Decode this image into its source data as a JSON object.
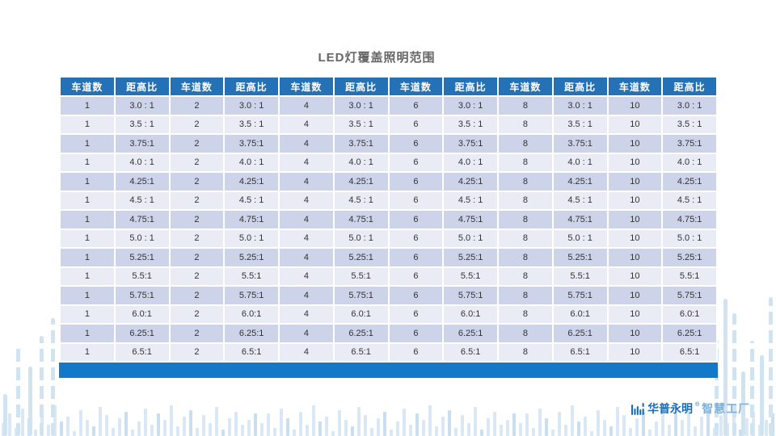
{
  "title": "LED灯覆盖照明范围",
  "table": {
    "columns": [
      "车道数",
      "距高比",
      "车道数",
      "距高比",
      "车道数",
      "距高比",
      "车道数",
      "距高比",
      "车道数",
      "距高比",
      "车道数",
      "距高比"
    ],
    "lanes": [
      "1",
      "2",
      "4",
      "6",
      "8",
      "10"
    ],
    "ratios": [
      "3.0 : 1",
      "3.5 : 1",
      "3.75:1",
      "4.0 : 1",
      "4.25:1",
      "4.5 : 1",
      "4.75:1",
      "5.0 : 1",
      "5.25:1",
      "5.5:1",
      "5.75:1",
      "6.0:1",
      "6.25:1",
      "6.5:1"
    ],
    "rows": [
      [
        "1",
        "3.0 : 1",
        "2",
        "3.0 : 1",
        "4",
        "3.0 : 1",
        "6",
        "3.0 : 1",
        "8",
        "3.0 : 1",
        "10",
        "3.0 : 1"
      ],
      [
        "1",
        "3.5 : 1",
        "2",
        "3.5 : 1",
        "4",
        "3.5 : 1",
        "6",
        "3.5 : 1",
        "8",
        "3.5 : 1",
        "10",
        "3.5 : 1"
      ],
      [
        "1",
        "3.75:1",
        "2",
        "3.75:1",
        "4",
        "3.75:1",
        "6",
        "3.75:1",
        "8",
        "3.75:1",
        "10",
        "3.75:1"
      ],
      [
        "1",
        "4.0 : 1",
        "2",
        "4.0 : 1",
        "4",
        "4.0 : 1",
        "6",
        "4.0 : 1",
        "8",
        "4.0 : 1",
        "10",
        "4.0 : 1"
      ],
      [
        "1",
        "4.25:1",
        "2",
        "4.25:1",
        "4",
        "4.25:1",
        "6",
        "4.25:1",
        "8",
        "4.25:1",
        "10",
        "4.25:1"
      ],
      [
        "1",
        "4.5 : 1",
        "2",
        "4.5 : 1",
        "4",
        "4.5 : 1",
        "6",
        "4.5 : 1",
        "8",
        "4.5 : 1",
        "10",
        "4.5 : 1"
      ],
      [
        "1",
        "4.75:1",
        "2",
        "4.75:1",
        "4",
        "4.75:1",
        "6",
        "4.75:1",
        "8",
        "4.75:1",
        "10",
        "4.75:1"
      ],
      [
        "1",
        "5.0 : 1",
        "2",
        "5.0 : 1",
        "4",
        "5.0 : 1",
        "6",
        "5.0 : 1",
        "8",
        "5.0 : 1",
        "10",
        "5.0 : 1"
      ],
      [
        "1",
        "5.25:1",
        "2",
        "5.25:1",
        "4",
        "5.25:1",
        "6",
        "5.25:1",
        "8",
        "5.25:1",
        "10",
        "5.25:1"
      ],
      [
        "1",
        "5.5:1",
        "2",
        "5.5:1",
        "4",
        "5.5:1",
        "6",
        "5.5:1",
        "8",
        "5.5:1",
        "10",
        "5.5:1"
      ],
      [
        "1",
        "5.75:1",
        "2",
        "5.75:1",
        "4",
        "5.75:1",
        "6",
        "5.75:1",
        "8",
        "5.75:1",
        "10",
        "5.75:1"
      ],
      [
        "1",
        "6.0:1",
        "2",
        "6.0:1",
        "4",
        "6.0:1",
        "6",
        "6.0:1",
        "8",
        "6.0:1",
        "10",
        "6.0:1"
      ],
      [
        "1",
        "6.25:1",
        "2",
        "6.25:1",
        "4",
        "6.25:1",
        "6",
        "6.25:1",
        "8",
        "6.25:1",
        "10",
        "6.25:1"
      ],
      [
        "1",
        "6.5:1",
        "2",
        "6.5:1",
        "4",
        "6.5:1",
        "6",
        "6.5:1",
        "8",
        "6.5:1",
        "10",
        "6.5:1"
      ]
    ]
  },
  "brand": {
    "name_primary": "华普永明",
    "reg_mark": "®",
    "name_secondary": "智慧工厂"
  },
  "colors": {
    "header_bg": "#2471b5",
    "header_text": "#ffffff",
    "row_odd": "#cdd3e9",
    "row_even": "#e9ecf5",
    "footer_bar": "#1478c8",
    "title_text": "#666666",
    "cell_text": "#333333",
    "brand_primary": "#1a6cb5",
    "brand_secondary": "#7fb0da",
    "deco_bar": "#d9e8f4",
    "deco_bar_dark": "#c9dfef"
  }
}
